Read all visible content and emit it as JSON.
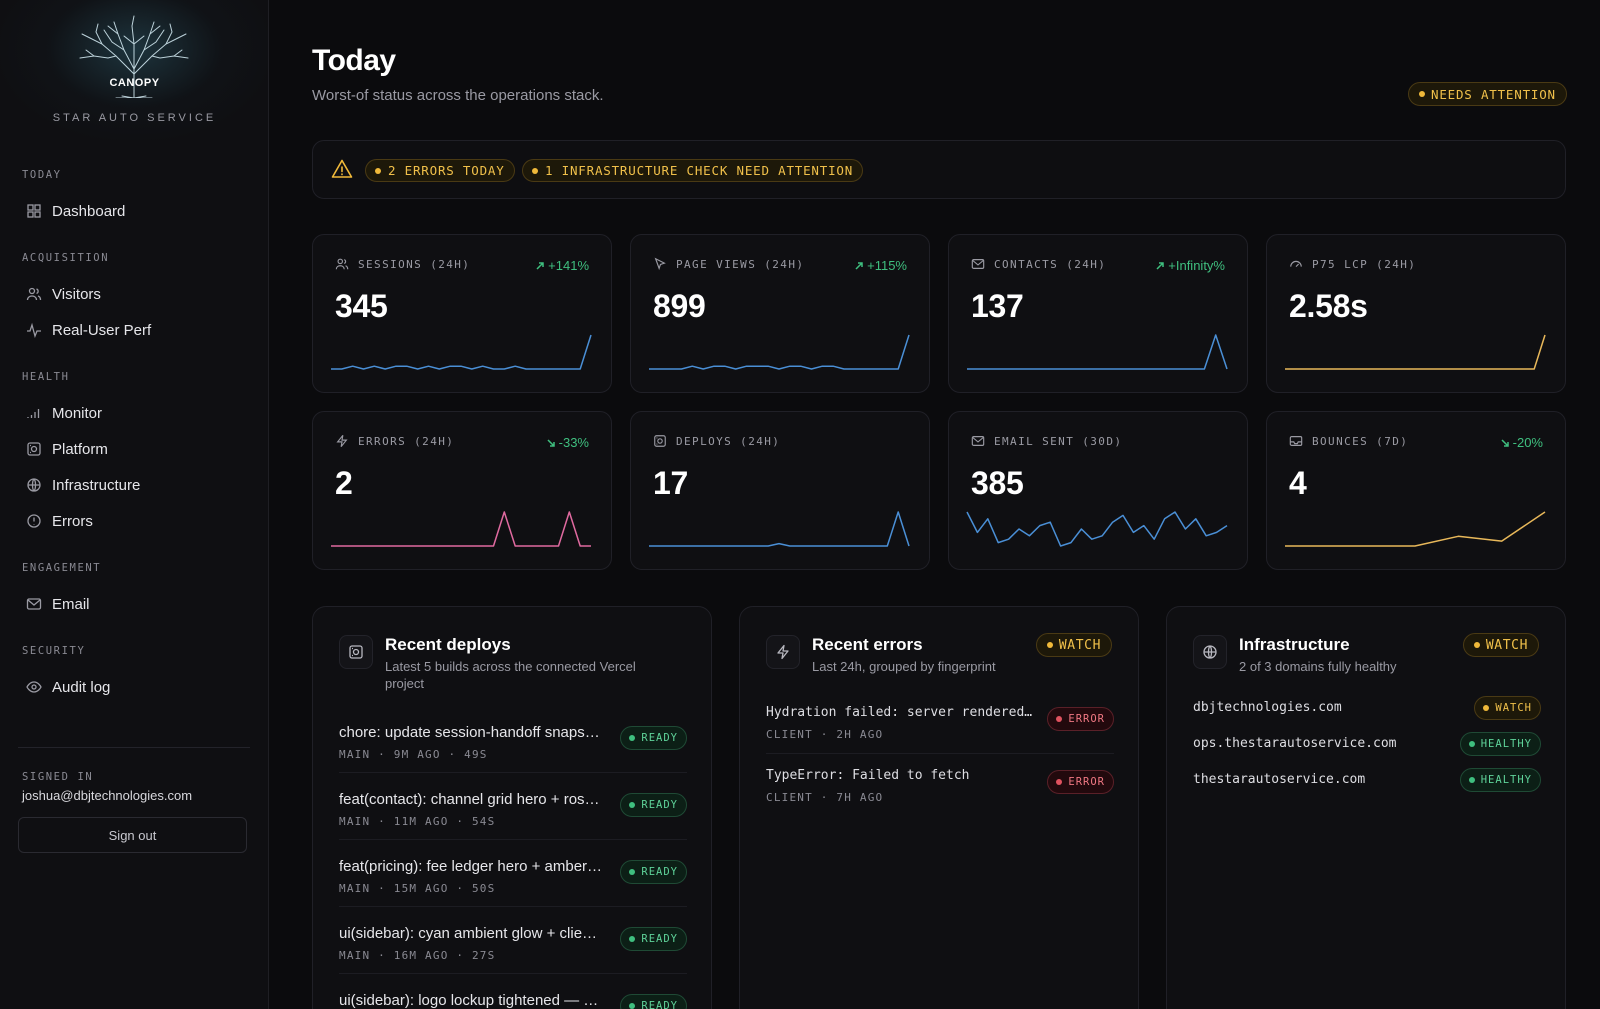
{
  "brand": {
    "logo_word": "CANOPY",
    "subtitle": "STAR AUTO SERVICE"
  },
  "sidebar": {
    "sections": [
      {
        "label": "TODAY",
        "items": [
          {
            "label": "Dashboard",
            "icon": "grid-icon"
          }
        ]
      },
      {
        "label": "ACQUISITION",
        "items": [
          {
            "label": "Visitors",
            "icon": "users-icon"
          },
          {
            "label": "Real-User Perf",
            "icon": "pulse-icon"
          }
        ]
      },
      {
        "label": "HEALTH",
        "items": [
          {
            "label": "Monitor",
            "icon": "signal-icon"
          },
          {
            "label": "Platform",
            "icon": "server-icon"
          },
          {
            "label": "Infrastructure",
            "icon": "globe-icon"
          },
          {
            "label": "Errors",
            "icon": "alert-circle-icon"
          }
        ]
      },
      {
        "label": "ENGAGEMENT",
        "items": [
          {
            "label": "Email",
            "icon": "mail-icon"
          }
        ]
      },
      {
        "label": "SECURITY",
        "items": [
          {
            "label": "Audit log",
            "icon": "eye-icon"
          }
        ]
      }
    ],
    "signed_in_label": "SIGNED IN",
    "signed_in_email": "joshua@dbjtechnologies.com",
    "sign_out_label": "Sign out"
  },
  "header": {
    "title": "Today",
    "subtitle": "Worst-of status across the operations stack.",
    "status_badge": "NEEDS ATTENTION"
  },
  "alerts": {
    "items": [
      "2 ERRORS TODAY",
      "1 INFRASTRUCTURE CHECK NEED ATTENTION"
    ]
  },
  "colors": {
    "green": "#3fbf7f",
    "amber": "#f0b93a",
    "red": "#e0525f",
    "blue": "#4a8fd6",
    "pink": "#e06aa0",
    "yellow": "#e8b85a"
  },
  "metrics": [
    {
      "label": "SESSIONS (24H)",
      "value": "345",
      "delta": "+141%",
      "delta_dir": "up",
      "icon": "users-icon",
      "color": "#4a8fd6",
      "series": [
        2,
        2,
        3,
        2,
        3,
        2,
        3,
        3,
        2,
        3,
        2,
        3,
        3,
        2,
        3,
        2,
        2,
        3,
        2,
        2,
        2,
        2,
        2,
        2,
        14
      ]
    },
    {
      "label": "PAGE VIEWS (24H)",
      "value": "899",
      "delta": "+115%",
      "delta_dir": "up",
      "icon": "cursor-icon",
      "color": "#4a8fd6",
      "series": [
        2,
        2,
        2,
        2,
        3,
        2,
        3,
        3,
        2,
        3,
        3,
        3,
        2,
        3,
        3,
        2,
        3,
        3,
        2,
        2,
        2,
        2,
        2,
        2,
        14
      ]
    },
    {
      "label": "CONTACTS (24H)",
      "value": "137",
      "delta": "+Infinity%",
      "delta_dir": "up",
      "icon": "mail-icon",
      "color": "#4a8fd6",
      "series": [
        0,
        0,
        0,
        0,
        0,
        0,
        0,
        0,
        0,
        0,
        0,
        0,
        0,
        0,
        0,
        0,
        0,
        0,
        0,
        0,
        0,
        0,
        14,
        0
      ]
    },
    {
      "label": "P75 LCP (24H)",
      "value": "2.58s",
      "delta": "",
      "delta_dir": "",
      "icon": "gauge-icon",
      "color": "#e8b85a",
      "series": [
        2,
        2,
        2,
        2,
        2,
        2,
        2,
        2,
        2,
        2,
        2,
        2,
        2,
        2,
        2,
        2,
        2,
        2,
        2,
        2,
        2,
        2,
        2,
        2,
        14
      ]
    },
    {
      "label": "ERRORS (24H)",
      "value": "2",
      "delta": "-33%",
      "delta_dir": "down",
      "icon": "bolt-icon",
      "color": "#e06aa0",
      "series": [
        0,
        0,
        0,
        0,
        0,
        0,
        0,
        0,
        0,
        0,
        0,
        0,
        0,
        0,
        0,
        0,
        14,
        0,
        0,
        0,
        0,
        0,
        14,
        0,
        0
      ]
    },
    {
      "label": "DEPLOYS (24H)",
      "value": "17",
      "delta": "",
      "delta_dir": "",
      "icon": "server-icon",
      "color": "#4a8fd6",
      "series": [
        0,
        0,
        0,
        0,
        0,
        0,
        0,
        0,
        0,
        0,
        0,
        0,
        1,
        0,
        0,
        0,
        0,
        0,
        0,
        0,
        0,
        0,
        0,
        14,
        0
      ]
    },
    {
      "label": "EMAIL SENT (30D)",
      "value": "385",
      "delta": "",
      "delta_dir": "",
      "icon": "mail-icon",
      "color": "#4a8fd6",
      "series": [
        14,
        8,
        12,
        5,
        6,
        9,
        7,
        10,
        11,
        4,
        5,
        9,
        6,
        7,
        11,
        13,
        8,
        10,
        6,
        12,
        14,
        9,
        12,
        7,
        8,
        10
      ]
    },
    {
      "label": "BOUNCES (7D)",
      "value": "4",
      "delta": "-20%",
      "delta_dir": "down",
      "icon": "inbox-icon",
      "color": "#e8b85a",
      "series": [
        0,
        0,
        0,
        0,
        2,
        1,
        7
      ]
    }
  ],
  "deploys": {
    "title": "Recent deploys",
    "subtitle": "Latest 5 builds across the connected Vercel project",
    "items": [
      {
        "title": "chore: update session-handoff snaps…",
        "meta": "MAIN · 9M AGO · 49S",
        "status": "READY"
      },
      {
        "title": "feat(contact): channel grid hero + ros…",
        "meta": "MAIN · 11M AGO · 54S",
        "status": "READY"
      },
      {
        "title": "feat(pricing): fee ledger hero + amber…",
        "meta": "MAIN · 15M AGO · 50S",
        "status": "READY"
      },
      {
        "title": "ui(sidebar): cyan ambient glow + clie…",
        "meta": "MAIN · 16M AGO · 27S",
        "status": "READY"
      },
      {
        "title": "ui(sidebar): logo lockup tightened — …",
        "meta": "",
        "status": "READY"
      }
    ]
  },
  "errors": {
    "title": "Recent errors",
    "subtitle": "Last 24h, grouped by fingerprint",
    "status": "WATCH",
    "items": [
      {
        "title": "Hydration failed: server rendered …",
        "meta": "CLIENT · 2H AGO",
        "status": "ERROR"
      },
      {
        "title": "TypeError: Failed to fetch",
        "meta": "CLIENT · 7H AGO",
        "status": "ERROR"
      }
    ]
  },
  "infrastructure": {
    "title": "Infrastructure",
    "subtitle": "2 of 3 domains fully healthy",
    "status": "WATCH",
    "items": [
      {
        "domain": "dbjtechnologies.com",
        "status": "WATCH"
      },
      {
        "domain": "ops.thestarautoservice.com",
        "status": "HEALTHY"
      },
      {
        "domain": "thestarautoservice.com",
        "status": "HEALTHY"
      }
    ]
  }
}
